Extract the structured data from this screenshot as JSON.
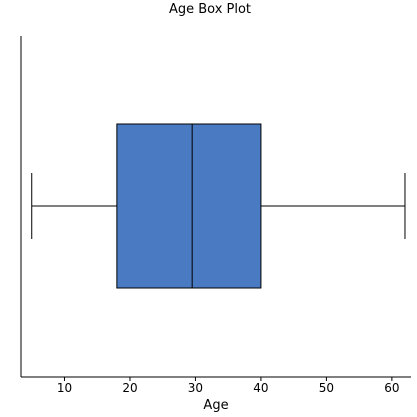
{
  "chart_data": {
    "type": "box",
    "title": "Age Box Plot",
    "xlabel": "Age",
    "ylabel": "",
    "orientation": "horizontal",
    "xlim": [
      3,
      64
    ],
    "xticks": [
      10,
      20,
      30,
      40,
      50,
      60
    ],
    "grid": false,
    "box": {
      "whisker_low": 5,
      "q1": 18,
      "median": 29.5,
      "q3": 40,
      "whisker_high": 62
    },
    "colors": {
      "box_fill": "#4a7bc2",
      "stroke": "#000000"
    }
  }
}
